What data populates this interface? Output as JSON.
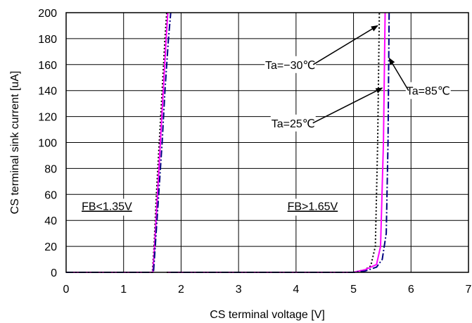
{
  "chart_data": {
    "type": "line",
    "xlabel": "CS terminal voltage [V]",
    "ylabel": "CS terminal sink current [uA]",
    "xlim": [
      0,
      7
    ],
    "ylim": [
      0,
      200
    ],
    "xticks": [
      "0",
      "1",
      "2",
      "3",
      "4",
      "5",
      "6",
      "7"
    ],
    "yticks": [
      "0",
      "20",
      "40",
      "60",
      "80",
      "100",
      "120",
      "140",
      "160",
      "180",
      "200"
    ],
    "grid": true,
    "legend": "none",
    "series": [
      {
        "name": "Ta=-30℃",
        "style": "dotted",
        "color": "#000000",
        "segments": [
          [
            [
              0,
              0
            ],
            [
              1.5,
              0
            ],
            [
              1.53,
              20
            ],
            [
              1.57,
              60
            ],
            [
              1.62,
              100
            ],
            [
              1.67,
              140
            ],
            [
              1.72,
              180
            ],
            [
              1.75,
              200
            ]
          ],
          [
            [
              1.75,
              0
            ],
            [
              5.0,
              0
            ],
            [
              5.2,
              2
            ],
            [
              5.3,
              5
            ],
            [
              5.38,
              20
            ],
            [
              5.42,
              100
            ],
            [
              5.45,
              200
            ]
          ]
        ]
      },
      {
        "name": "Ta=25℃",
        "style": "solid",
        "color": "#ff00ff",
        "segments": [
          [
            [
              0,
              0
            ],
            [
              1.51,
              0
            ],
            [
              1.54,
              20
            ],
            [
              1.59,
              60
            ],
            [
              1.64,
              100
            ],
            [
              1.69,
              140
            ],
            [
              1.74,
              180
            ],
            [
              1.77,
              200
            ]
          ],
          [
            [
              1.77,
              0
            ],
            [
              5.0,
              0
            ],
            [
              5.2,
              2
            ],
            [
              5.4,
              6
            ],
            [
              5.47,
              20
            ],
            [
              5.52,
              100
            ],
            [
              5.55,
              200
            ]
          ]
        ]
      },
      {
        "name": "Ta=85℃",
        "style": "dashdot",
        "color": "#000080",
        "segments": [
          [
            [
              0,
              0
            ],
            [
              1.52,
              0
            ],
            [
              1.55,
              20
            ],
            [
              1.61,
              60
            ],
            [
              1.67,
              100
            ],
            [
              1.72,
              140
            ],
            [
              1.78,
              180
            ],
            [
              1.82,
              200
            ]
          ],
          [
            [
              1.82,
              0
            ],
            [
              5.0,
              0
            ],
            [
              5.2,
              1
            ],
            [
              5.4,
              4
            ],
            [
              5.5,
              10
            ],
            [
              5.57,
              30
            ],
            [
              5.6,
              100
            ],
            [
              5.62,
              200
            ]
          ]
        ]
      }
    ],
    "annotations": [
      {
        "text": "Ta=−30℃",
        "at": [
          3.9,
          160
        ],
        "arrow_to": [
          5.42,
          190
        ]
      },
      {
        "text": "Ta=25℃",
        "at": [
          3.95,
          115
        ],
        "arrow_to": [
          5.5,
          142
        ]
      },
      {
        "text": "Ta=85℃",
        "at": [
          6.3,
          140
        ],
        "arrow_to": [
          5.62,
          165
        ]
      }
    ],
    "regions": [
      {
        "text": "FB<1.35V",
        "at": [
          0.27,
          48
        ]
      },
      {
        "text": "FB>1.65V",
        "at": [
          3.85,
          48
        ]
      }
    ]
  }
}
